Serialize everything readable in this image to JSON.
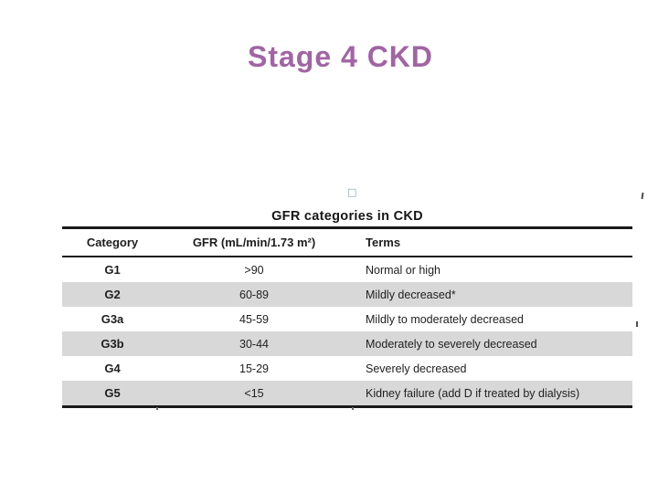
{
  "slide": {
    "title": "Stage 4 CKD"
  },
  "icons": {
    "bullet_placeholder": "□"
  },
  "table": {
    "caption": "GFR categories in CKD",
    "columns": {
      "category": "Category",
      "gfr": "GFR (mL/min/1.73 m²)",
      "terms": "Terms"
    },
    "rows": [
      {
        "category": "G1",
        "gfr": ">90",
        "terms": "Normal or high"
      },
      {
        "category": "G2",
        "gfr": "60-89",
        "terms": "Mildly decreased*"
      },
      {
        "category": "G3a",
        "gfr": "45-59",
        "terms": "Mildly to moderately decreased"
      },
      {
        "category": "G3b",
        "gfr": "30-44",
        "terms": "Moderately to severely decreased"
      },
      {
        "category": "G4",
        "gfr": "15-29",
        "terms": "Severely decreased"
      },
      {
        "category": "G5",
        "gfr": "<15",
        "terms": "Kidney failure (add D if treated by dialysis)"
      }
    ]
  },
  "colors": {
    "title": "#a164a4",
    "table_border": "#1a1a1a",
    "row_shade": "#d8d8d8",
    "body_text": "#1e1e1e",
    "bullet_placeholder": "#7f9faa",
    "edge_artifact": "#4d4d55"
  }
}
